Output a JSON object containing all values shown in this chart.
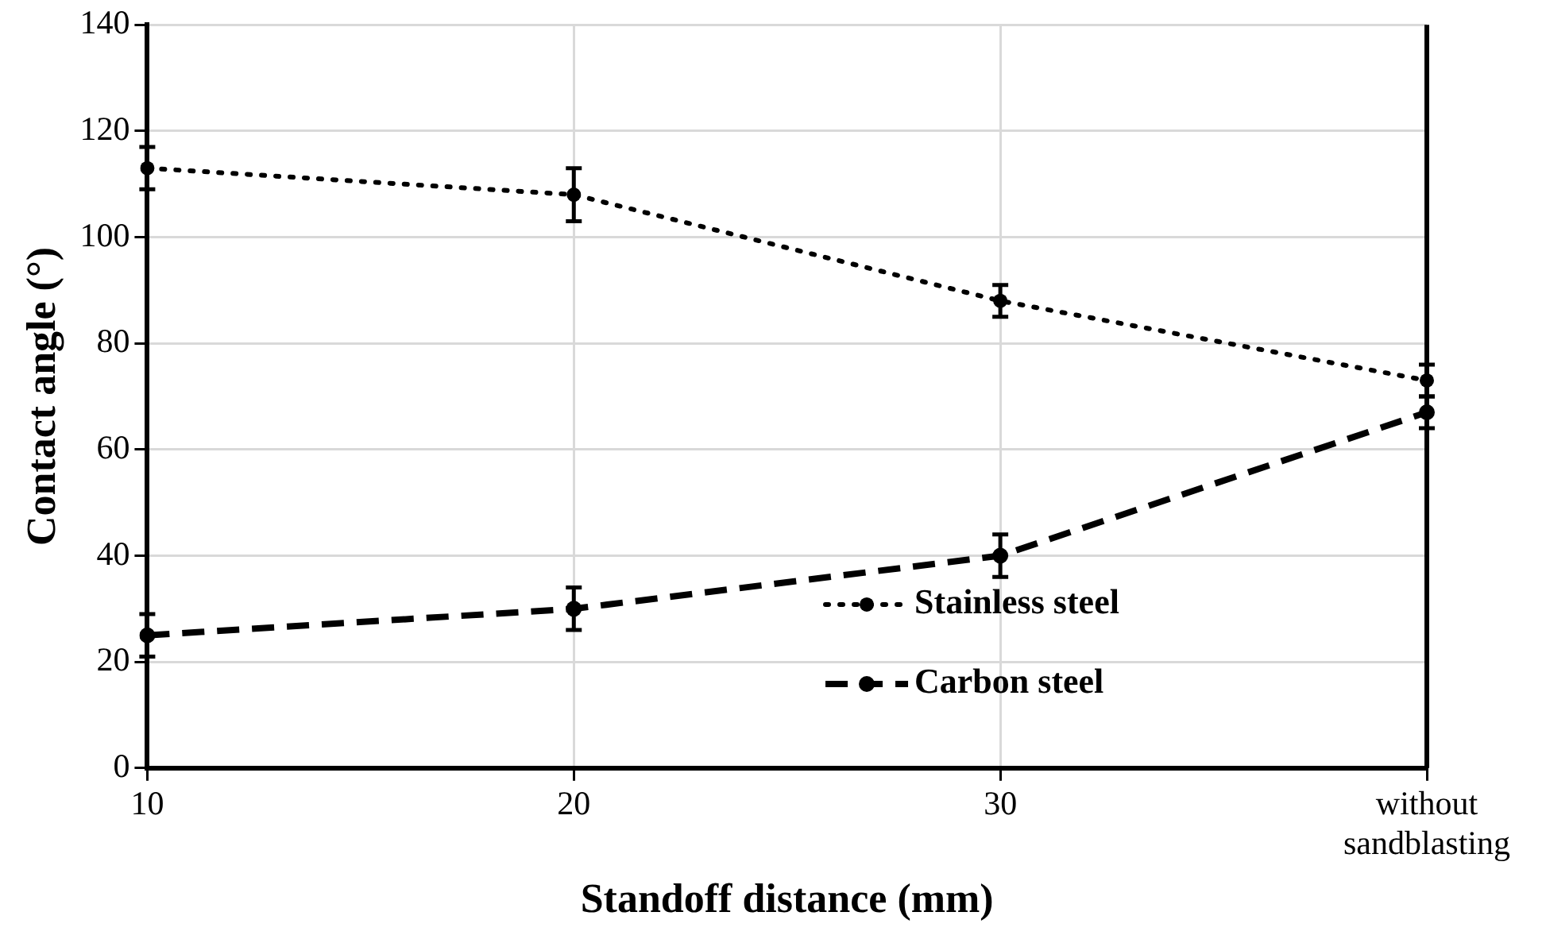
{
  "chart_data": {
    "type": "line",
    "xlabel": "Standoff distance (mm)",
    "ylabel": "Contact angle (°)",
    "categories": [
      "10",
      "20",
      "30",
      "without sandblasting"
    ],
    "series": [
      {
        "name": "Stainless steel",
        "color": "#000000",
        "line_style": "dotted",
        "values": [
          113,
          108,
          88,
          73
        ],
        "errors": [
          4,
          5,
          3,
          3
        ]
      },
      {
        "name": "Carbon steel",
        "color": "#000000",
        "line_style": "dashed",
        "values": [
          25,
          30,
          40,
          67
        ],
        "errors": [
          4,
          4,
          4,
          3
        ]
      }
    ],
    "ylim": [
      0,
      140
    ],
    "yticks": [
      0,
      20,
      40,
      60,
      80,
      100,
      120,
      140
    ],
    "grid": true,
    "legend": "bottom right",
    "marker": "circle"
  }
}
